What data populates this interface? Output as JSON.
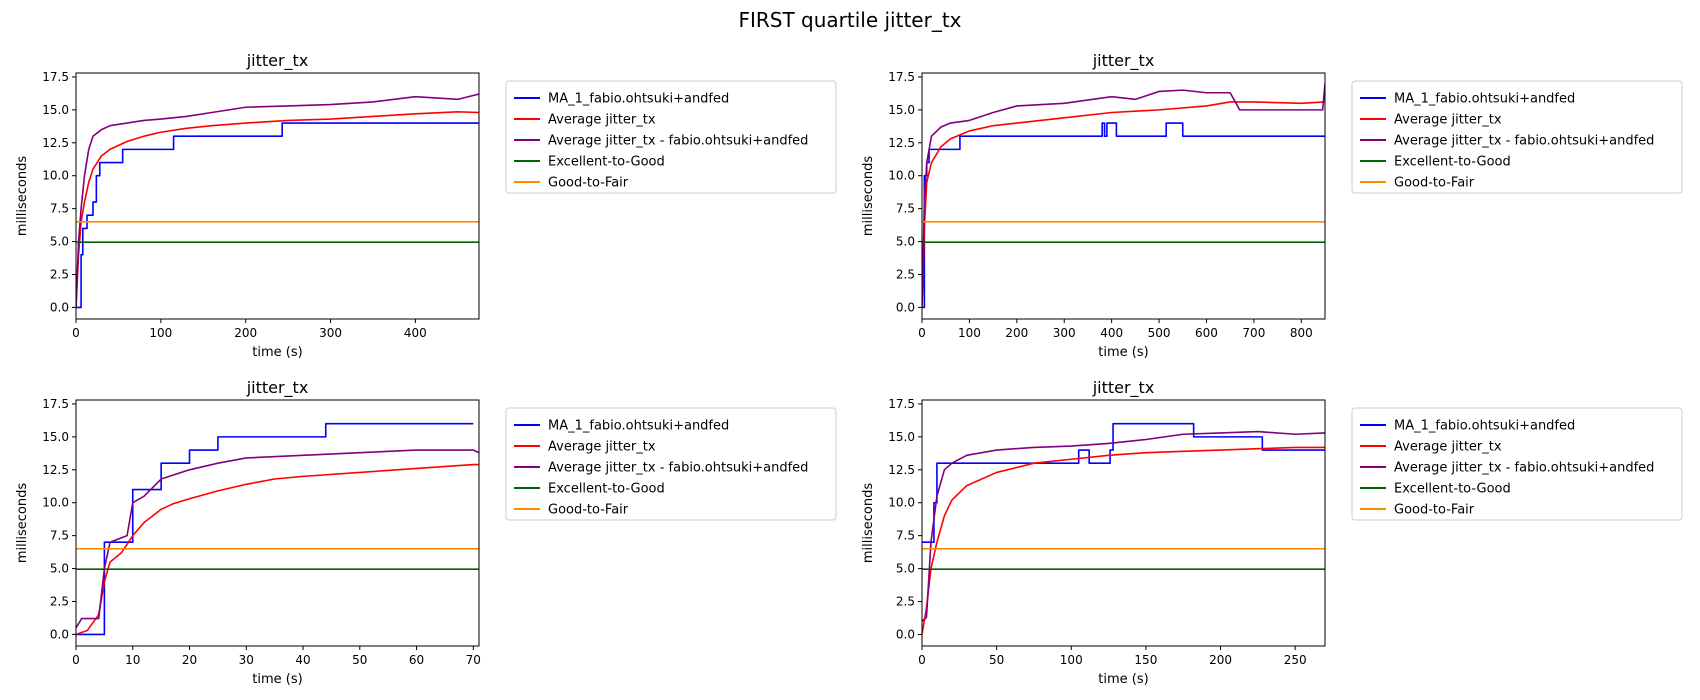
{
  "figure": {
    "suptitle": "FIRST quartile jitter_tx"
  },
  "colors": {
    "ma": "#0000ff",
    "avg": "#ff0000",
    "user_avg": "#800080",
    "excellent": "#006400",
    "good": "#ff8c00"
  },
  "chart_data": [
    {
      "type": "line",
      "title": "jitter_tx",
      "xlabel": "time (s)",
      "ylabel": "milliseconds",
      "xlim": [
        0,
        475
      ],
      "ylim": [
        -0.88,
        17.8
      ],
      "xticks": [
        0,
        100,
        200,
        300,
        400
      ],
      "yticks": [
        0.0,
        2.5,
        5.0,
        7.5,
        10.0,
        12.5,
        15.0,
        17.5
      ],
      "legend": "outside-right",
      "series": [
        {
          "name": "MA_1_fabio.ohtsuki+andfed",
          "color": "#0000ff",
          "step": true,
          "x": [
            0,
            6,
            8,
            13,
            20,
            24,
            28,
            35,
            55,
            115,
            243,
            475
          ],
          "y": [
            0,
            4,
            6,
            7,
            8,
            10,
            11,
            11,
            12,
            13,
            14,
            14
          ]
        },
        {
          "name": "Average jitter_tx",
          "color": "#ff0000",
          "x": [
            0,
            3,
            6,
            10,
            15,
            20,
            30,
            40,
            60,
            80,
            100,
            130,
            160,
            200,
            250,
            300,
            350,
            400,
            450,
            475
          ],
          "y": [
            0,
            4,
            6.5,
            8,
            9.5,
            10.5,
            11.5,
            12,
            12.6,
            13,
            13.3,
            13.6,
            13.8,
            14,
            14.2,
            14.3,
            14.5,
            14.7,
            14.85,
            14.8
          ]
        },
        {
          "name": "Average jitter_tx - fabio.ohtsuki+andfed",
          "color": "#800080",
          "x": [
            0,
            3,
            6,
            10,
            15,
            20,
            30,
            40,
            60,
            80,
            100,
            130,
            160,
            200,
            250,
            300,
            350,
            400,
            450,
            475
          ],
          "y": [
            0,
            5,
            7.5,
            10,
            12,
            13,
            13.5,
            13.8,
            14,
            14.2,
            14.3,
            14.5,
            14.8,
            15.2,
            15.3,
            15.4,
            15.6,
            16.0,
            15.8,
            16.2
          ]
        },
        {
          "name": "Excellent-to-Good",
          "color": "#006400",
          "x": [
            0,
            475
          ],
          "y": [
            4.95,
            4.95
          ]
        },
        {
          "name": "Good-to-Fair",
          "color": "#ff8c00",
          "x": [
            0,
            475
          ],
          "y": [
            6.5,
            6.5
          ]
        }
      ]
    },
    {
      "type": "line",
      "title": "jitter_tx",
      "xlabel": "time (s)",
      "ylabel": "milliseconds",
      "xlim": [
        0,
        850
      ],
      "ylim": [
        -0.88,
        17.8
      ],
      "xticks": [
        0,
        100,
        200,
        300,
        400,
        500,
        600,
        700,
        800
      ],
      "yticks": [
        0.0,
        2.5,
        5.0,
        7.5,
        10.0,
        12.5,
        15.0,
        17.5
      ],
      "legend": "outside-right",
      "series": [
        {
          "name": "MA_1_fabio.ohtsuki+andfed",
          "color": "#0000ff",
          "step": true,
          "x": [
            0,
            5,
            10,
            15,
            25,
            80,
            380,
            385,
            390,
            410,
            510,
            515,
            550,
            850
          ],
          "y": [
            0,
            10,
            11,
            12,
            12,
            13,
            14,
            13,
            14,
            13,
            13,
            14,
            13,
            13
          ]
        },
        {
          "name": "Average jitter_tx",
          "color": "#ff0000",
          "x": [
            0,
            5,
            10,
            20,
            40,
            60,
            80,
            100,
            150,
            200,
            300,
            400,
            500,
            600,
            650,
            700,
            800,
            850
          ],
          "y": [
            0,
            6,
            9.5,
            11,
            12.2,
            12.8,
            13.1,
            13.4,
            13.8,
            14,
            14.4,
            14.8,
            15,
            15.3,
            15.6,
            15.6,
            15.5,
            15.6
          ]
        },
        {
          "name": "Average jitter_tx - fabio.ohtsuki+andfed",
          "color": "#800080",
          "x": [
            0,
            5,
            10,
            20,
            40,
            60,
            100,
            150,
            200,
            300,
            400,
            450,
            500,
            550,
            600,
            650,
            670,
            700,
            845,
            850
          ],
          "y": [
            0,
            8,
            11,
            13,
            13.7,
            14,
            14.2,
            14.8,
            15.3,
            15.5,
            16,
            15.8,
            16.4,
            16.5,
            16.3,
            16.3,
            15,
            15,
            15,
            17
          ]
        },
        {
          "name": "Excellent-to-Good",
          "color": "#006400",
          "x": [
            0,
            850
          ],
          "y": [
            4.95,
            4.95
          ]
        },
        {
          "name": "Good-to-Fair",
          "color": "#ff8c00",
          "x": [
            0,
            850
          ],
          "y": [
            6.5,
            6.5
          ]
        }
      ]
    },
    {
      "type": "line",
      "title": "jitter_tx",
      "xlabel": "time (s)",
      "ylabel": "milliseconds",
      "xlim": [
        0,
        71
      ],
      "ylim": [
        -0.88,
        17.8
      ],
      "xticks": [
        0,
        10,
        20,
        30,
        40,
        50,
        60,
        70
      ],
      "yticks": [
        0.0,
        2.5,
        5.0,
        7.5,
        10.0,
        12.5,
        15.0,
        17.5
      ],
      "legend": "outside-right",
      "series": [
        {
          "name": "MA_1_fabio.ohtsuki+andfed",
          "color": "#0000ff",
          "step": true,
          "x": [
            0,
            4.5,
            5,
            9,
            10,
            13,
            15,
            19,
            20,
            24,
            25,
            44,
            70
          ],
          "y": [
            0,
            0,
            7,
            7,
            11,
            11,
            13,
            13,
            14,
            14,
            15,
            16,
            16
          ]
        },
        {
          "name": "Average jitter_tx",
          "color": "#ff0000",
          "x": [
            0,
            2,
            4,
            5,
            6,
            8,
            10,
            12,
            15,
            17,
            20,
            25,
            30,
            35,
            40,
            50,
            60,
            70,
            71
          ],
          "y": [
            0,
            0.3,
            1.5,
            4,
            5.5,
            6.2,
            7.5,
            8.5,
            9.5,
            9.9,
            10.3,
            10.9,
            11.4,
            11.8,
            12,
            12.3,
            12.6,
            12.9,
            12.9
          ]
        },
        {
          "name": "Average jitter_tx - fabio.ohtsuki+andfed",
          "color": "#800080",
          "x": [
            0,
            1,
            4,
            5,
            6,
            9,
            10,
            12,
            15,
            20,
            25,
            30,
            40,
            50,
            60,
            70,
            71
          ],
          "y": [
            0.5,
            1.2,
            1.2,
            5,
            7,
            7.5,
            10,
            10.5,
            11.8,
            12.5,
            13,
            13.4,
            13.6,
            13.8,
            14,
            14,
            13.8
          ]
        },
        {
          "name": "Excellent-to-Good",
          "color": "#006400",
          "x": [
            0,
            71
          ],
          "y": [
            4.95,
            4.95
          ]
        },
        {
          "name": "Good-to-Fair",
          "color": "#ff8c00",
          "x": [
            0,
            71
          ],
          "y": [
            6.5,
            6.5
          ]
        }
      ]
    },
    {
      "type": "line",
      "title": "jitter_tx",
      "xlabel": "time (s)",
      "ylabel": "milliseconds",
      "xlim": [
        0,
        270
      ],
      "ylim": [
        -0.88,
        17.8
      ],
      "xticks": [
        0,
        50,
        100,
        150,
        200,
        250
      ],
      "yticks": [
        0.0,
        2.5,
        5.0,
        7.5,
        10.0,
        12.5,
        15.0,
        17.5
      ],
      "legend": "outside-right",
      "series": [
        {
          "name": "MA_1_fabio.ohtsuki+andfed",
          "color": "#0000ff",
          "step": true,
          "x": [
            0,
            2,
            8,
            10,
            105,
            112,
            126,
            128,
            182,
            185,
            225,
            228,
            270
          ],
          "y": [
            7,
            7,
            10,
            13,
            14,
            13,
            14,
            16,
            15,
            15,
            15,
            14,
            14
          ]
        },
        {
          "name": "Average jitter_tx",
          "color": "#ff0000",
          "x": [
            0,
            3,
            6,
            10,
            15,
            20,
            30,
            50,
            75,
            100,
            125,
            150,
            175,
            200,
            225,
            250,
            270
          ],
          "y": [
            0,
            2,
            5,
            7,
            9,
            10.2,
            11.3,
            12.3,
            13,
            13.3,
            13.6,
            13.8,
            13.9,
            14,
            14.1,
            14.2,
            14.2
          ]
        },
        {
          "name": "Average jitter_tx - fabio.ohtsuki+andfed",
          "color": "#800080",
          "x": [
            0,
            3,
            6,
            10,
            15,
            20,
            30,
            50,
            75,
            100,
            125,
            150,
            175,
            200,
            225,
            250,
            270
          ],
          "y": [
            1,
            1.3,
            7,
            10.5,
            12.5,
            13,
            13.6,
            14,
            14.2,
            14.3,
            14.5,
            14.8,
            15.2,
            15.3,
            15.4,
            15.2,
            15.3
          ]
        },
        {
          "name": "Excellent-to-Good",
          "color": "#006400",
          "x": [
            0,
            270
          ],
          "y": [
            4.95,
            4.95
          ]
        },
        {
          "name": "Good-to-Fair",
          "color": "#ff8c00",
          "x": [
            0,
            270
          ],
          "y": [
            6.5,
            6.5
          ]
        }
      ]
    }
  ]
}
